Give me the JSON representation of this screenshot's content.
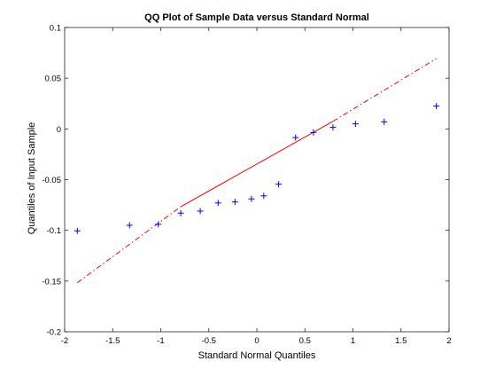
{
  "chart_data": {
    "type": "scatter",
    "title": "QQ Plot of Sample Data versus Standard Normal",
    "xlabel": "Standard Normal Quantiles",
    "ylabel": "Quantiles of Input Sample",
    "xlim": [
      -2,
      2
    ],
    "ylim": [
      -0.2,
      0.1
    ],
    "xticks": [
      -2,
      -1.5,
      -1,
      -0.5,
      0,
      0.5,
      1,
      1.5,
      2
    ],
    "xtick_labels": [
      "-2",
      "-1.5",
      "-1",
      "-0.5",
      "0",
      "0.5",
      "1",
      "1.5",
      "2"
    ],
    "yticks": [
      -0.2,
      -0.15,
      -0.1,
      -0.05,
      0,
      0.05,
      0.1
    ],
    "ytick_labels": [
      "-0.2",
      "-0.15",
      "-0.1",
      "-0.05",
      "0",
      "0.05",
      "0.1"
    ],
    "grid": false,
    "points": {
      "marker": "plus",
      "color": "#0000ff",
      "x": [
        -1.868,
        -1.325,
        -1.026,
        -0.792,
        -0.589,
        -0.403,
        -0.227,
        -0.056,
        0.072,
        0.227,
        0.403,
        0.589,
        0.792,
        1.026,
        1.325,
        1.868
      ],
      "y": [
        -0.1005,
        -0.095,
        -0.094,
        -0.083,
        -0.081,
        -0.073,
        -0.072,
        -0.069,
        -0.066,
        -0.0545,
        -0.0085,
        -0.0035,
        0.0015,
        0.005,
        0.007,
        0.0225
      ]
    },
    "reference_line": {
      "color": "#ff0000",
      "solid": {
        "x": [
          -0.792,
          0.792
        ],
        "y": [
          -0.0767,
          0.0075
        ]
      },
      "dashdot": [
        {
          "x": [
            -1.868,
            -0.792
          ],
          "y": [
            -0.1516,
            -0.0767
          ]
        },
        {
          "x": [
            0.792,
            1.868
          ],
          "y": [
            0.0075,
            0.0693
          ]
        }
      ]
    }
  }
}
